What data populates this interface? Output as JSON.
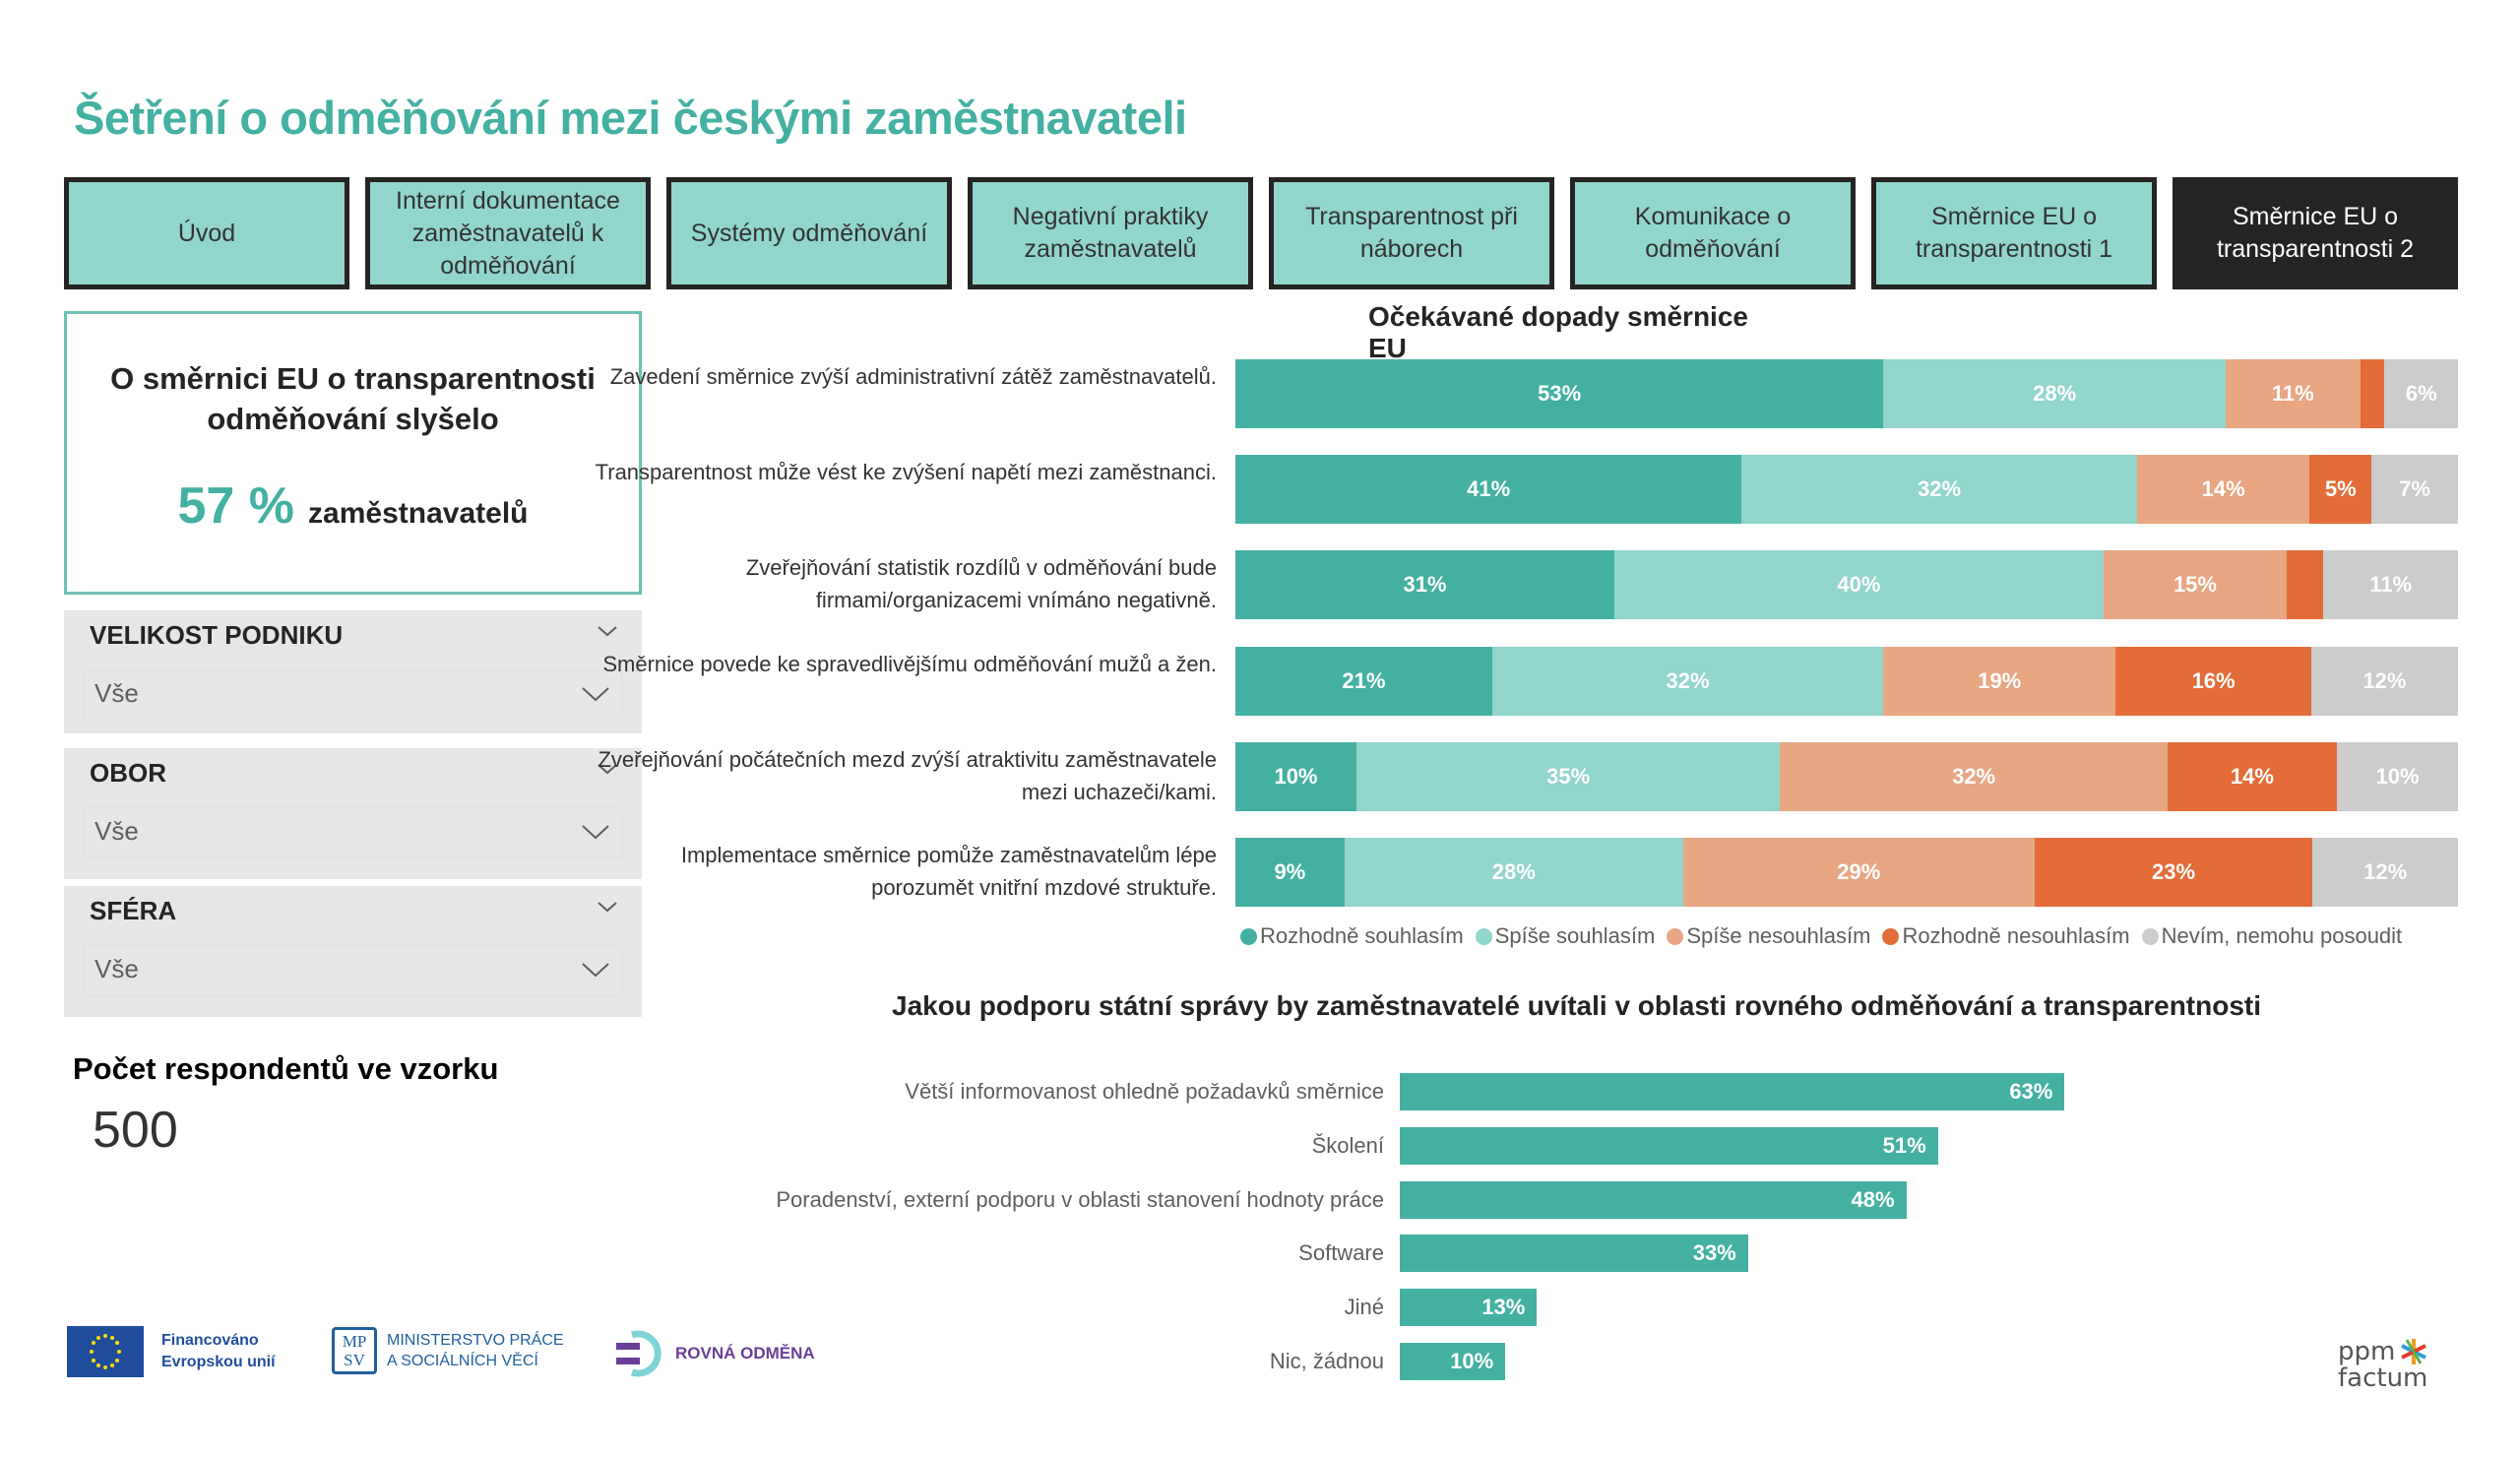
{
  "header": {
    "title": "Šetření o odměňování mezi českými zaměstnavateli"
  },
  "tabs": [
    {
      "label": "Úvod",
      "active": false
    },
    {
      "label": "Interní dokumentace zaměstnavatelů k odměňování",
      "active": false
    },
    {
      "label": "Systémy odměňování",
      "active": false
    },
    {
      "label": "Negativní praktiky zaměstnavatelů",
      "active": false
    },
    {
      "label": "Transparentnost při náborech",
      "active": false
    },
    {
      "label": "Komunikace o odměňování",
      "active": false
    },
    {
      "label": "Směrnice EU o transparentnosti 1",
      "active": false
    },
    {
      "label": "Směrnice EU o transparentnosti 2",
      "active": true
    }
  ],
  "kpi": {
    "question": "O směrnici EU o transparentnosti odměňování slyšelo",
    "value": "57 %",
    "unit": "zaměstnavatelů"
  },
  "filters": [
    {
      "title": "VELIKOST PODNIKU",
      "value": "Vše"
    },
    {
      "title": "OBOR",
      "value": "Vše"
    },
    {
      "title": "SFÉRA",
      "value": "Vše"
    }
  ],
  "respondents": {
    "label": "Počet respondentů ve vzorku",
    "value": "500"
  },
  "colors": {
    "accent": "#44B0A2",
    "rozhodne_souhlasim": "#44B0A2",
    "spise_souhlasim": "#92D5CC",
    "spise_nesouhlasim": "#E8A683",
    "rozhodne_nesouhlasim": "#E46C38",
    "nevim": "#CCCCCC"
  },
  "chart_data": [
    {
      "type": "bar",
      "orientation": "horizontal",
      "stacked": true,
      "normalized": true,
      "title": "Očekávané dopady směrnice EU",
      "legend_position": "bottom",
      "categories": [
        "Zavedení směrnice zvýší administrativní zátěž zaměstnavatelů.",
        "Transparentnost může vést ke zvýšení napětí mezi zaměstnanci.",
        "Zveřejňování statistik rozdílů v odměňování bude firmami/organizacemi vnímáno negativně.",
        "Směrnice povede ke spravedlivějšímu odměňování mužů a žen.",
        "Zveřejňování počátečních mezd zvýší atraktivitu zaměstnavatele mezi uchazeči/kami.",
        "Implementace směrnice pomůže zaměstnavatelům lépe porozumět vnitřní mzdové struktuře."
      ],
      "series": [
        {
          "name": "Rozhodně souhlasím",
          "color": "#44B0A2",
          "values": [
            53,
            41,
            31,
            21,
            10,
            9
          ],
          "show_labels": [
            true,
            true,
            true,
            true,
            true,
            true
          ]
        },
        {
          "name": "Spíše souhlasím",
          "color": "#92D5CC",
          "values": [
            28,
            32,
            40,
            32,
            35,
            28
          ],
          "show_labels": [
            true,
            true,
            true,
            true,
            true,
            true
          ]
        },
        {
          "name": "Spíše nesouhlasím",
          "color": "#E8A683",
          "values": [
            11,
            14,
            15,
            19,
            32,
            29
          ],
          "show_labels": [
            true,
            true,
            true,
            true,
            true,
            true
          ]
        },
        {
          "name": "Rozhodně nesouhlasím",
          "color": "#E46C38",
          "values": [
            2,
            5,
            3,
            16,
            14,
            23
          ],
          "show_labels": [
            false,
            true,
            false,
            true,
            true,
            true
          ]
        },
        {
          "name": "Nevím, nemohu posoudit",
          "color": "#CCCCCC",
          "values": [
            6,
            7,
            11,
            12,
            10,
            12
          ],
          "show_labels": [
            true,
            true,
            true,
            true,
            true,
            true
          ]
        }
      ],
      "value_suffix": "%"
    },
    {
      "type": "bar",
      "orientation": "horizontal",
      "title": "Jakou podporu státní správy by zaměstnavatelé uvítali v oblasti rovného odměňování a transparentnosti",
      "categories": [
        "Větší informovanost ohledně požadavků směrnice",
        "Školení",
        "Poradenství, externí podporu v oblasti stanovení hodnoty práce",
        "Software",
        "Jiné",
        "Nic, žádnou"
      ],
      "values": [
        63,
        51,
        48,
        33,
        13,
        10
      ],
      "color": "#44B0A2",
      "value_suffix": "%",
      "xlim": [
        0,
        100
      ]
    }
  ],
  "footer": {
    "eu_text_1": "Financováno",
    "eu_text_2": "Evropskou unií",
    "mpsv_mark_1": "MP",
    "mpsv_mark_2": "SV",
    "mpsv_text_1": "MINISTERSTVO PRÁCE",
    "mpsv_text_2": "A SOCIÁLNÍCH VĚCÍ",
    "rovna_text": "ROVNÁ ODMĚNA",
    "ppm_text_1": "ppm",
    "ppm_text_2": "factum"
  }
}
